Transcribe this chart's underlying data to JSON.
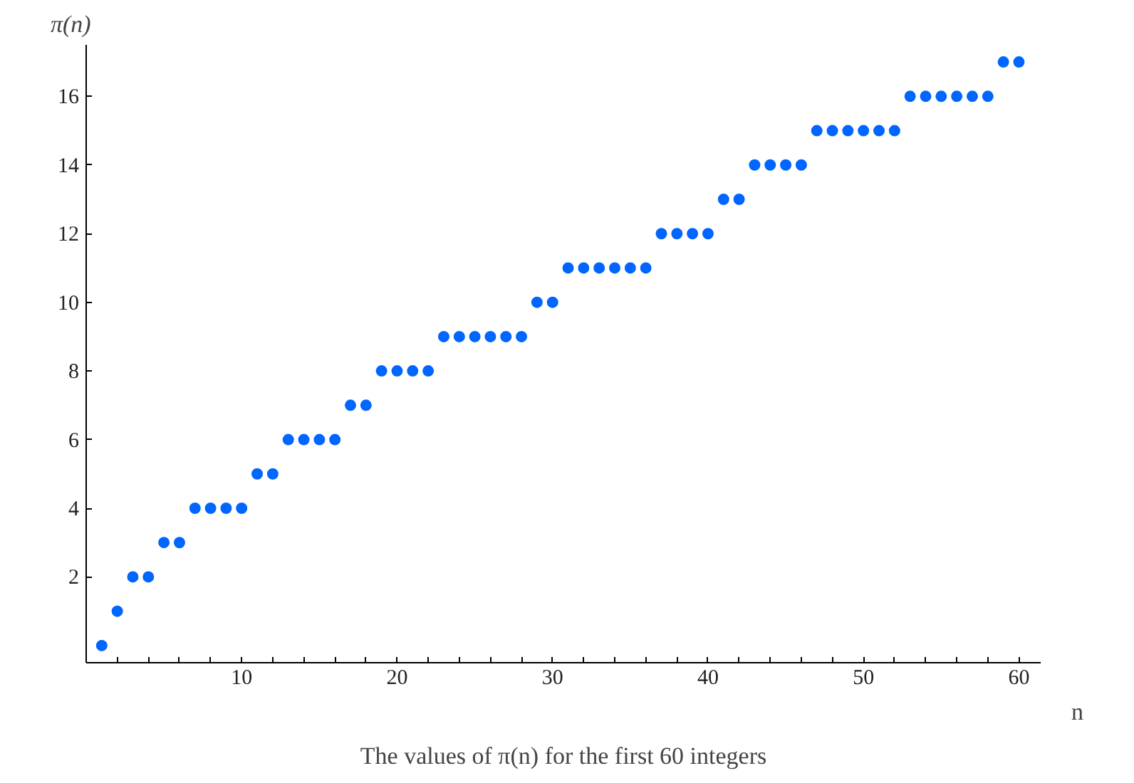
{
  "chart_data": {
    "type": "scatter",
    "xlabel": "n",
    "ylabel": "π(n)",
    "annotations": [
      "The values of π(n) for the first 60 integers"
    ],
    "x": [
      1,
      2,
      3,
      4,
      5,
      6,
      7,
      8,
      9,
      10,
      11,
      12,
      13,
      14,
      15,
      16,
      17,
      18,
      19,
      20,
      21,
      22,
      23,
      24,
      25,
      26,
      27,
      28,
      29,
      30,
      31,
      32,
      33,
      34,
      35,
      36,
      37,
      38,
      39,
      40,
      41,
      42,
      43,
      44,
      45,
      46,
      47,
      48,
      49,
      50,
      51,
      52,
      53,
      54,
      55,
      56,
      57,
      58,
      59,
      60
    ],
    "series": [
      {
        "color": "#0066ff",
        "values": [
          0,
          1,
          2,
          2,
          3,
          3,
          4,
          4,
          4,
          4,
          5,
          5,
          6,
          6,
          6,
          6,
          7,
          7,
          8,
          8,
          8,
          8,
          9,
          9,
          9,
          9,
          9,
          9,
          10,
          10,
          11,
          11,
          11,
          11,
          11,
          11,
          12,
          12,
          12,
          12,
          13,
          13,
          14,
          14,
          14,
          14,
          15,
          15,
          15,
          15,
          15,
          15,
          16,
          16,
          16,
          16,
          16,
          16,
          17,
          17
        ]
      }
    ],
    "xlim": [
      0,
      61.4
    ],
    "ylim": [
      -0.5,
      17.5
    ],
    "xticks": [
      {
        "value": 2,
        "label": null
      },
      {
        "value": 4,
        "label": null
      },
      {
        "value": 6,
        "label": null
      },
      {
        "value": 8,
        "label": null
      },
      10,
      {
        "value": 12,
        "label": null
      },
      {
        "value": 14,
        "label": null
      },
      {
        "value": 16,
        "label": null
      },
      {
        "value": 18,
        "label": null
      },
      20,
      {
        "value": 22,
        "label": null
      },
      {
        "value": 24,
        "label": null
      },
      {
        "value": 26,
        "label": null
      },
      {
        "value": 28,
        "label": null
      },
      30,
      {
        "value": 32,
        "label": null
      },
      {
        "value": 34,
        "label": null
      },
      {
        "value": 36,
        "label": null
      },
      {
        "value": 38,
        "label": null
      },
      40,
      {
        "value": 42,
        "label": null
      },
      {
        "value": 44,
        "label": null
      },
      {
        "value": 46,
        "label": null
      },
      {
        "value": 48,
        "label": null
      },
      50,
      {
        "value": 52,
        "label": null
      },
      {
        "value": 54,
        "label": null
      },
      {
        "value": 56,
        "label": null
      },
      {
        "value": 58,
        "label": null
      },
      60
    ],
    "yticks": [
      2,
      4,
      6,
      8,
      10,
      12,
      14,
      16
    ],
    "marker": "circle",
    "grid": false
  }
}
